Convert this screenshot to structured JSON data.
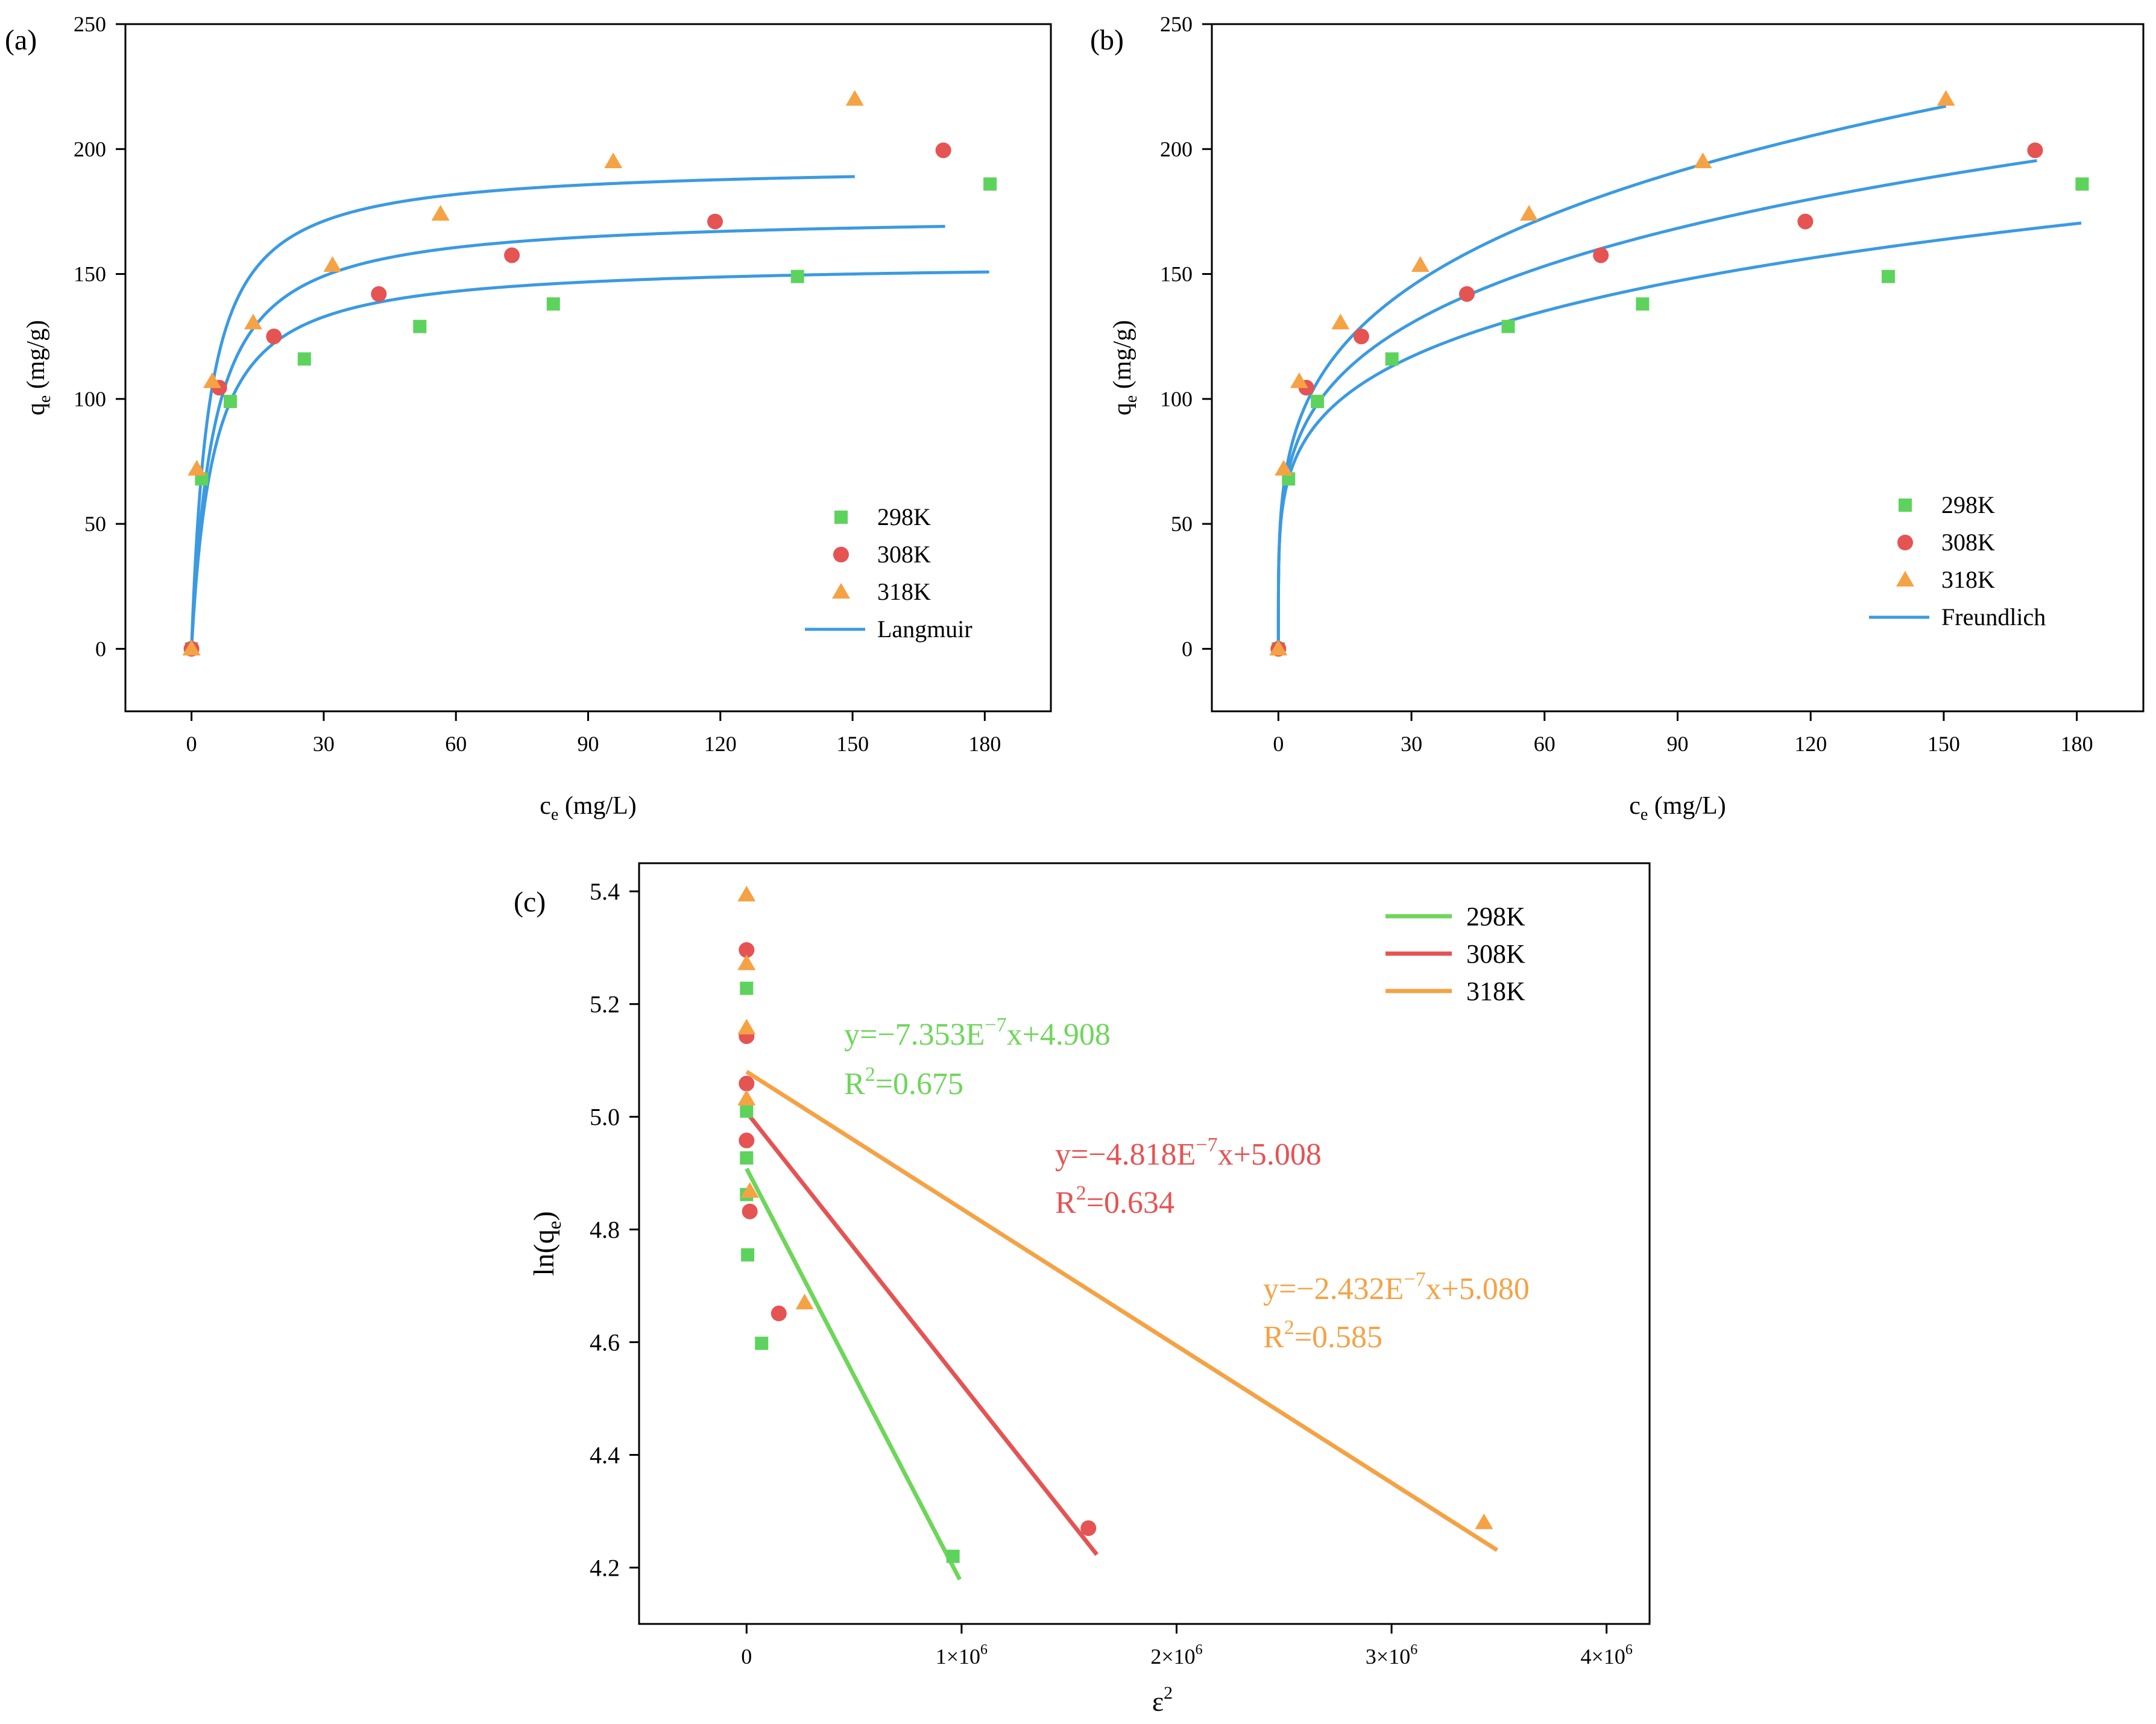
{
  "chart_data": [
    {
      "panel_label": "(a)",
      "type": "scatter",
      "xlabel": "c",
      "xlabel_sub": "e",
      "xlabel_unit": " (mg/L)",
      "ylabel": "q",
      "ylabel_sub": "e",
      "ylabel_unit": " (mg/g)",
      "xlim": [
        -15,
        195
      ],
      "ylim": [
        -25,
        250
      ],
      "xticks": [
        0,
        30,
        60,
        90,
        120,
        150,
        180
      ],
      "yticks": [
        0,
        50,
        100,
        150,
        200,
        250
      ],
      "legend_position": "bottom-right",
      "series": [
        {
          "name": "298K",
          "marker": "square",
          "color": "#5dd35d",
          "x": [
            0,
            2.3,
            8.8,
            25.6,
            51.8,
            82.1,
            137.5,
            181.2
          ],
          "y": [
            0,
            68,
            99,
            116,
            129,
            138,
            149,
            186
          ]
        },
        {
          "name": "308K",
          "marker": "circle",
          "color": "#e55353",
          "x": [
            0,
            6.3,
            18.7,
            42.5,
            72.7,
            118.8,
            170.6
          ],
          "y": [
            0,
            104.5,
            125,
            142,
            157.5,
            171,
            199.5
          ]
        },
        {
          "name": "318K",
          "marker": "triangle",
          "color": "#f5a245",
          "x": [
            0,
            1.2,
            4.7,
            14.0,
            32.0,
            56.5,
            95.7,
            150.5
          ],
          "y": [
            0,
            72,
            107,
            130.5,
            153.5,
            174,
            195,
            220
          ]
        }
      ],
      "fit": {
        "name": "Langmuir",
        "color": "#3b9ae1",
        "curves": [
          {
            "qm": 155,
            "K": 0.2,
            "xmax": 181
          },
          {
            "qm": 174,
            "K": 0.2,
            "xmax": 171
          },
          {
            "qm": 194,
            "K": 0.25,
            "xmax": 150.5
          }
        ]
      }
    },
    {
      "panel_label": "(b)",
      "type": "scatter",
      "xlabel": "c",
      "xlabel_sub": "e",
      "xlabel_unit": " (mg/L)",
      "ylabel": "q",
      "ylabel_sub": "e",
      "ylabel_unit": " (mg/g)",
      "xlim": [
        -15,
        195
      ],
      "ylim": [
        -25,
        250
      ],
      "xticks": [
        0,
        30,
        60,
        90,
        120,
        150,
        180
      ],
      "yticks": [
        0,
        50,
        100,
        150,
        200,
        250
      ],
      "legend_position": "bottom-right",
      "series": [
        {
          "name": "298K",
          "marker": "square",
          "color": "#5dd35d",
          "x": [
            0,
            2.3,
            8.8,
            25.6,
            51.8,
            82.1,
            137.5,
            181.2
          ],
          "y": [
            0,
            68,
            99,
            116,
            129,
            138,
            149,
            186
          ]
        },
        {
          "name": "308K",
          "marker": "circle",
          "color": "#e55353",
          "x": [
            0,
            6.3,
            18.7,
            42.5,
            72.7,
            118.8,
            170.6
          ],
          "y": [
            0,
            104.5,
            125,
            142,
            157.5,
            171,
            199.5
          ]
        },
        {
          "name": "318K",
          "marker": "triangle",
          "color": "#f5a245",
          "x": [
            0,
            1.2,
            4.7,
            14.0,
            32.0,
            56.5,
            95.7,
            150.5
          ],
          "y": [
            0,
            72,
            107,
            130.5,
            153.5,
            174,
            195,
            220
          ]
        }
      ],
      "fit": {
        "name": "Freundlich",
        "color": "#3b9ae1",
        "curves": [
          {
            "Kf": 57.3,
            "n": 4.77,
            "xmax": 181
          },
          {
            "Kf": 59.1,
            "n": 4.3,
            "xmax": 171
          },
          {
            "Kf": 62.0,
            "n": 4.0,
            "xmax": 150.5
          }
        ]
      }
    },
    {
      "panel_label": "(c)",
      "type": "scatter",
      "xlabel": "ε",
      "xlabel_sup": "2",
      "ylabel": "ln(q",
      "ylabel_sub": "e",
      "ylabel_tail": ")",
      "xlim": [
        -500000,
        4200000
      ],
      "ylim": [
        4.1,
        5.45
      ],
      "xticks": [
        0,
        1000000,
        2000000,
        3000000,
        4000000
      ],
      "xtick_labels": [
        "0",
        "1×10",
        "2×10",
        "3×10",
        "4×10"
      ],
      "xtick_exp": "6",
      "yticks": [
        4.2,
        4.4,
        4.6,
        4.8,
        5.0,
        5.2,
        5.4
      ],
      "ytick_labels": [
        "4.2",
        "4.4",
        "4.6",
        "4.8",
        "5.0",
        "5.2",
        "5.4"
      ],
      "legend_position": "top-right",
      "series": [
        {
          "name": "298K",
          "marker": "square",
          "color": "#5dd35d",
          "x": [
            0,
            0,
            0,
            0,
            5000,
            70000,
            960000
          ],
          "y": [
            5.228,
            5.01,
            4.927,
            4.862,
            4.755,
            4.598,
            4.22
          ]
        },
        {
          "name": "308K",
          "marker": "circle",
          "color": "#e55353",
          "x": [
            0,
            0,
            0,
            0,
            15000,
            150000,
            1590000
          ],
          "y": [
            5.296,
            5.143,
            5.059,
            4.958,
            4.832,
            4.651,
            4.27
          ]
        },
        {
          "name": "318K",
          "marker": "triangle",
          "color": "#f5a245",
          "x": [
            0,
            0,
            0,
            0,
            15000,
            270000,
            3430000
          ],
          "y": [
            5.394,
            5.272,
            5.158,
            5.032,
            4.868,
            4.67,
            4.28
          ]
        }
      ],
      "fits": [
        {
          "name": "298K",
          "color": "#6ed65a",
          "slope": -7.353e-07,
          "intercept": 4.908,
          "x0": 0,
          "x1": 960000,
          "eq_prefix": "y=−7.353E",
          "eq_exp": "−7",
          "eq_suffix": "x+4.908",
          "r2_prefix": "R",
          "r2_exp": "2",
          "r2_suffix": "=0.675"
        },
        {
          "name": "308K",
          "color": "#e55353",
          "slope": -4.818e-07,
          "intercept": 5.008,
          "x0": 0,
          "x1": 1590000,
          "eq_prefix": "y=−4.818E",
          "eq_exp": "−7",
          "eq_suffix": "x+5.008",
          "r2_prefix": "R",
          "r2_exp": "2",
          "r2_suffix": "=0.634"
        },
        {
          "name": "318K",
          "color": "#f5a245",
          "slope": -2.432e-07,
          "intercept": 5.08,
          "x0": 0,
          "x1": 3430000,
          "eq_prefix": "y=−2.432E",
          "eq_exp": "−7",
          "eq_suffix": "x+5.080",
          "r2_prefix": "R",
          "r2_exp": "2",
          "r2_suffix": "=0.585"
        }
      ]
    }
  ]
}
